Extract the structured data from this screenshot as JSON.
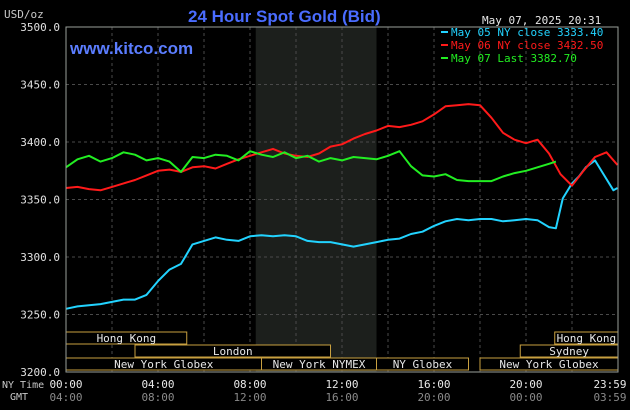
{
  "chart_data": {
    "type": "line",
    "title": "24 Hour Spot Gold (Bid)",
    "ylabel": "USD/oz",
    "timestamp": "May 07, 2025 20:31",
    "source": "www.kitco.com",
    "ylim": [
      3200,
      3500
    ],
    "y_ticks": [
      "3500.0",
      "3450.0",
      "3400.0",
      "3350.0",
      "3300.0",
      "3250.0",
      "3200.0"
    ],
    "x_row_label_ny": "NY Time",
    "x_row_label_gmt": "GMT",
    "x_ticks_ny": [
      "00:00",
      "04:00",
      "08:00",
      "12:00",
      "16:00",
      "20:00",
      "23:59"
    ],
    "x_ticks_gmt": [
      "04:00",
      "08:00",
      "12:00",
      "16:00",
      "20:00",
      "00:00",
      "03:59"
    ],
    "grid": true,
    "legend_position": "top-right",
    "series": [
      {
        "name": "May 05 NY close 3333.40",
        "color": "#22d3ff",
        "x": [
          0,
          0.5,
          1,
          1.5,
          2,
          2.5,
          3,
          3.5,
          4,
          4.5,
          5,
          5.5,
          6,
          6.5,
          7,
          7.5,
          8,
          8.5,
          9,
          9.5,
          10,
          10.5,
          11,
          11.5,
          12,
          12.5,
          13,
          13.5,
          14,
          14.5,
          15,
          15.5,
          16,
          16.5,
          17,
          17.5,
          18,
          18.5,
          19,
          19.5,
          20,
          20.5,
          21,
          21.3,
          21.6,
          22,
          22.3,
          22.6,
          23,
          23.4,
          23.8,
          23.98
        ],
        "values": [
          3255,
          3257,
          3258,
          3259,
          3261,
          3263,
          3263,
          3267,
          3279,
          3289,
          3294,
          3311,
          3314,
          3317,
          3315,
          3314,
          3318,
          3319,
          3318,
          3319,
          3318,
          3314,
          3313,
          3313,
          3311,
          3309,
          3311,
          3313,
          3315,
          3316,
          3320,
          3322,
          3327,
          3331,
          3333,
          3332,
          3333,
          3333,
          3331,
          3332,
          3333,
          3332,
          3326,
          3325,
          3351,
          3364,
          3370,
          3378,
          3384,
          3371,
          3358,
          3360
        ]
      },
      {
        "name": "May 06 NY close 3432.50",
        "color": "#ff1a1a",
        "x": [
          0,
          0.5,
          1,
          1.5,
          2,
          2.5,
          3,
          3.5,
          4,
          4.5,
          5,
          5.5,
          6,
          6.5,
          7,
          7.5,
          8,
          8.5,
          9,
          9.5,
          10,
          10.5,
          11,
          11.5,
          12,
          12.5,
          13,
          13.5,
          14,
          14.5,
          15,
          15.5,
          16,
          16.5,
          17,
          17.5,
          18,
          18.5,
          19,
          19.5,
          20,
          20.5,
          21,
          21.5,
          22,
          22.5,
          23,
          23.5,
          23.98
        ],
        "values": [
          3360,
          3361,
          3359,
          3358,
          3361,
          3364,
          3367,
          3371,
          3375,
          3376,
          3374,
          3378,
          3379,
          3377,
          3381,
          3385,
          3388,
          3391,
          3394,
          3390,
          3388,
          3387,
          3390,
          3396,
          3398,
          3403,
          3407,
          3410,
          3414,
          3413,
          3415,
          3418,
          3424,
          3431,
          3432,
          3433,
          3432,
          3421,
          3408,
          3402,
          3399,
          3402,
          3390,
          3372,
          3362,
          3375,
          3387,
          3391,
          3380
        ]
      },
      {
        "name": "May 07 Last 3382.70",
        "color": "#22ee22",
        "x": [
          0,
          0.5,
          1,
          1.5,
          2,
          2.5,
          3,
          3.5,
          4,
          4.5,
          5,
          5.5,
          6,
          6.5,
          7,
          7.5,
          8,
          8.5,
          9,
          9.5,
          10,
          10.5,
          11,
          11.5,
          12,
          12.5,
          13,
          13.5,
          14,
          14.5,
          15,
          15.5,
          16,
          16.5,
          17,
          17.5,
          18,
          18.5,
          19,
          19.5,
          20,
          20.5,
          21,
          21.3
        ],
        "values": [
          3378,
          3385,
          3388,
          3383,
          3386,
          3391,
          3389,
          3384,
          3386,
          3383,
          3374,
          3387,
          3386,
          3389,
          3388,
          3384,
          3392,
          3389,
          3387,
          3391,
          3386,
          3388,
          3383,
          3386,
          3384,
          3387,
          3386,
          3385,
          3388,
          3392,
          3379,
          3371,
          3370,
          3372,
          3367,
          3366,
          3366,
          3366,
          3370,
          3373,
          3375,
          3378,
          3381,
          3383
        ]
      }
    ],
    "sessions": [
      {
        "label": "Hong Kong",
        "start": -1,
        "end": 5.25,
        "row": 0
      },
      {
        "label": "Hong Kong",
        "start": 21.25,
        "end": 24,
        "row": 0
      },
      {
        "label": "London",
        "start": 3.0,
        "end": 11.5,
        "row": 1
      },
      {
        "label": "Sydney",
        "start": 19.75,
        "end": 24,
        "row": 1
      },
      {
        "label": "New York Globex",
        "start": 0,
        "end": 8.5,
        "row": 2
      },
      {
        "label": "New York NYMEX",
        "start": 8.5,
        "end": 13.5,
        "row": 2
      },
      {
        "label": "NY Globex",
        "start": 13.5,
        "end": 17.5,
        "row": 2
      },
      {
        "label": "New York Globex",
        "start": 18.0,
        "end": 24,
        "row": 2
      }
    ],
    "highlight": {
      "start": 8.25,
      "end": 13.5
    }
  }
}
